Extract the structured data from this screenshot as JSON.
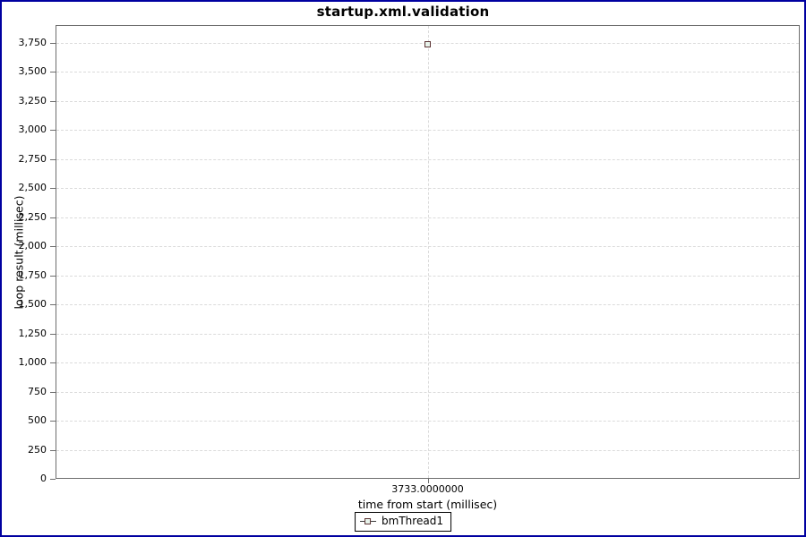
{
  "frame": {
    "border_color": "#0000A0",
    "background_color": "#FFFFFF"
  },
  "chart_data": {
    "type": "scatter",
    "title": "startup.xml.validation",
    "xlabel": "time from start (millisec)",
    "ylabel": "loop result (millisec)",
    "xlim": [
      3732.5,
      3733.5
    ],
    "ylim": [
      0,
      3900
    ],
    "grid": "dashed",
    "gridline_color": "#DBDBDB",
    "plot_outline_color": "#6E6E6E",
    "legend_position": "bottom",
    "x_ticks": [
      {
        "value": 3733,
        "label": "3733.0000000"
      }
    ],
    "y_ticks": [
      {
        "value": 0,
        "label": "0"
      },
      {
        "value": 250,
        "label": "250"
      },
      {
        "value": 500,
        "label": "500"
      },
      {
        "value": 750,
        "label": "750"
      },
      {
        "value": 1000,
        "label": "1,000"
      },
      {
        "value": 1250,
        "label": "1,250"
      },
      {
        "value": 1500,
        "label": "1,500"
      },
      {
        "value": 1750,
        "label": "1,750"
      },
      {
        "value": 2000,
        "label": "2,000"
      },
      {
        "value": 2250,
        "label": "2,250"
      },
      {
        "value": 2500,
        "label": "2,500"
      },
      {
        "value": 2750,
        "label": "2,750"
      },
      {
        "value": 3000,
        "label": "3,000"
      },
      {
        "value": 3250,
        "label": "3,250"
      },
      {
        "value": 3500,
        "label": "3,500"
      },
      {
        "value": 3750,
        "label": "3,750"
      }
    ],
    "series": [
      {
        "name": "bmThread1",
        "marker": "square",
        "marker_border_color": "#5C3434",
        "marker_fill_color": "#E7F3EB",
        "points": [
          {
            "x": 3733,
            "y": 3733
          }
        ]
      }
    ]
  }
}
